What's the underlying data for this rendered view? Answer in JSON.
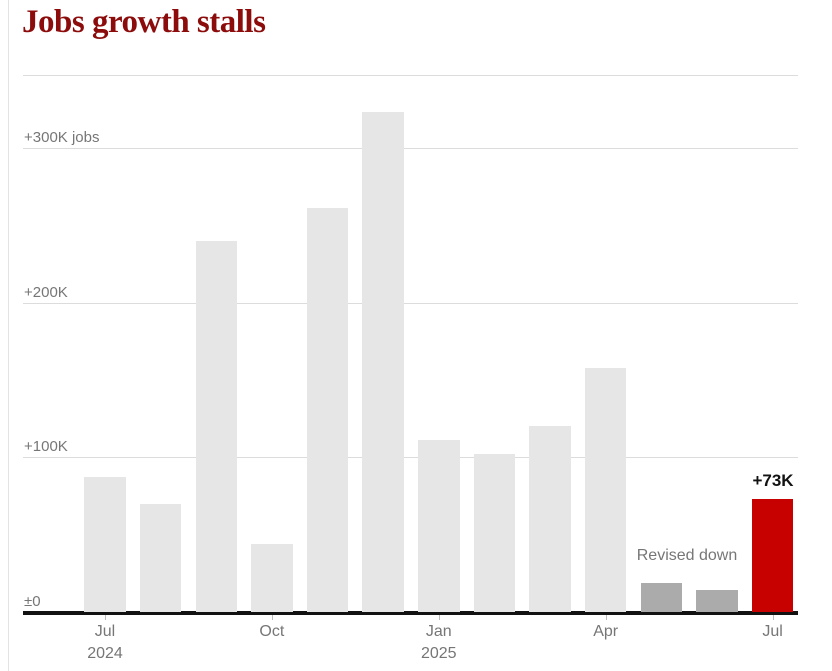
{
  "header": {
    "title": "Jobs growth stalls",
    "title_color": "#8c0c0c"
  },
  "chart_data": {
    "type": "bar",
    "title": "Jobs growth stalls",
    "unit": "thousands of jobs (K)",
    "categories": [
      "Jul 2024",
      "Aug 2024",
      "Sep 2024",
      "Oct 2024",
      "Nov 2024",
      "Dec 2024",
      "Jan 2025",
      "Feb 2025",
      "Mar 2025",
      "Apr 2025",
      "May 2025",
      "Jun 2025",
      "Jul 2025"
    ],
    "values": [
      87,
      70,
      240,
      44,
      261,
      323,
      111,
      102,
      120,
      158,
      19,
      14,
      73
    ],
    "bar_styles": [
      "normal",
      "normal",
      "normal",
      "normal",
      "normal",
      "normal",
      "normal",
      "normal",
      "normal",
      "normal",
      "revised",
      "revised",
      "highlight"
    ],
    "ylim": [
      0,
      335
    ],
    "grid": true,
    "y_ticks": [
      {
        "value": 0,
        "label": "±0"
      },
      {
        "value": 100,
        "label": "+100K"
      },
      {
        "value": 200,
        "label": "+200K"
      },
      {
        "value": 300,
        "label": "+300K jobs"
      }
    ],
    "x_ticks": [
      {
        "index": 0,
        "line1": "Jul",
        "line2": "2024"
      },
      {
        "index": 3,
        "line1": "Oct",
        "line2": ""
      },
      {
        "index": 6,
        "line1": "Jan",
        "line2": "2025"
      },
      {
        "index": 9,
        "line1": "Apr",
        "line2": ""
      },
      {
        "index": 12,
        "line1": "Jul",
        "line2": ""
      }
    ],
    "annotations": [
      {
        "text": "Revised down",
        "type": "note",
        "anchor": "between May and Jun bars"
      },
      {
        "text": "+73K",
        "type": "data-label",
        "anchor": "above Jul 2025 bar"
      }
    ],
    "colors": {
      "bar": "#e6e6e6",
      "revised": "#ababab",
      "highlight": "#c70000",
      "axis": "#121212",
      "gridline": "#dcdcdc",
      "label": "#767676"
    }
  }
}
